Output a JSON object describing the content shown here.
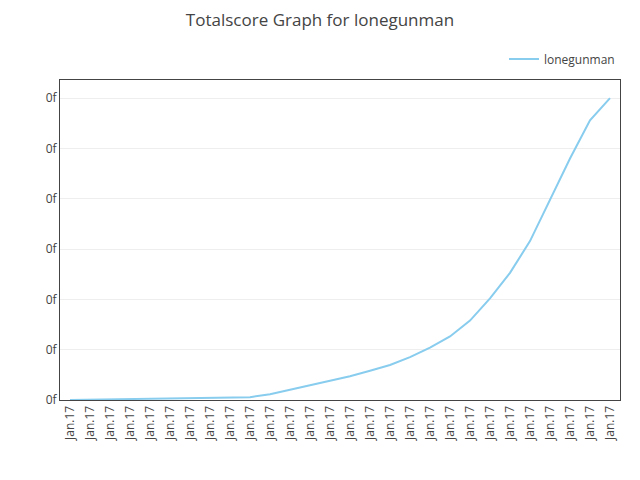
{
  "chart_data": {
    "type": "line",
    "title": "Totalscore Graph for lonegunman",
    "categories": [
      "Jan.17",
      "Jan.17",
      "Jan.17",
      "Jan.17",
      "Jan.17",
      "Jan.17",
      "Jan.17",
      "Jan.17",
      "Jan.17",
      "Jan.17",
      "Jan.17",
      "Jan.17",
      "Jan.17",
      "Jan.17",
      "Jan.17",
      "Jan.17",
      "Jan.17",
      "Jan.17",
      "Jan.17",
      "Jan.17",
      "Jan.17",
      "Jan.17",
      "Jan.17",
      "Jan.17",
      "Jan.17",
      "Jan.17",
      "Jan.17",
      "Jan.17"
    ],
    "series": [
      {
        "name": "lonegunman",
        "color": "#88ccee",
        "values": [
          0,
          100,
          250,
          450,
          600,
          700,
          780,
          820,
          860,
          900,
          1800,
          3200,
          4800,
          6200,
          7500,
          9200,
          11000,
          13500,
          16500,
          20000,
          25000,
          32000,
          40000,
          50000,
          63000,
          76000,
          88000,
          95000
        ]
      }
    ],
    "ylim": [
      0,
      100700
    ],
    "yticks": [
      {
        "value": 0,
        "label": "0f"
      },
      {
        "value": 15833.333333333334,
        "label": "0f"
      },
      {
        "value": 31666.666666666668,
        "label": "0f"
      },
      {
        "value": 47500,
        "label": "0f"
      },
      {
        "value": 63333.333333333336,
        "label": "0f"
      },
      {
        "value": 79166.66666666667,
        "label": "0f"
      },
      {
        "value": 95000,
        "label": "0f"
      }
    ],
    "grid": true,
    "legend": "upper right"
  }
}
